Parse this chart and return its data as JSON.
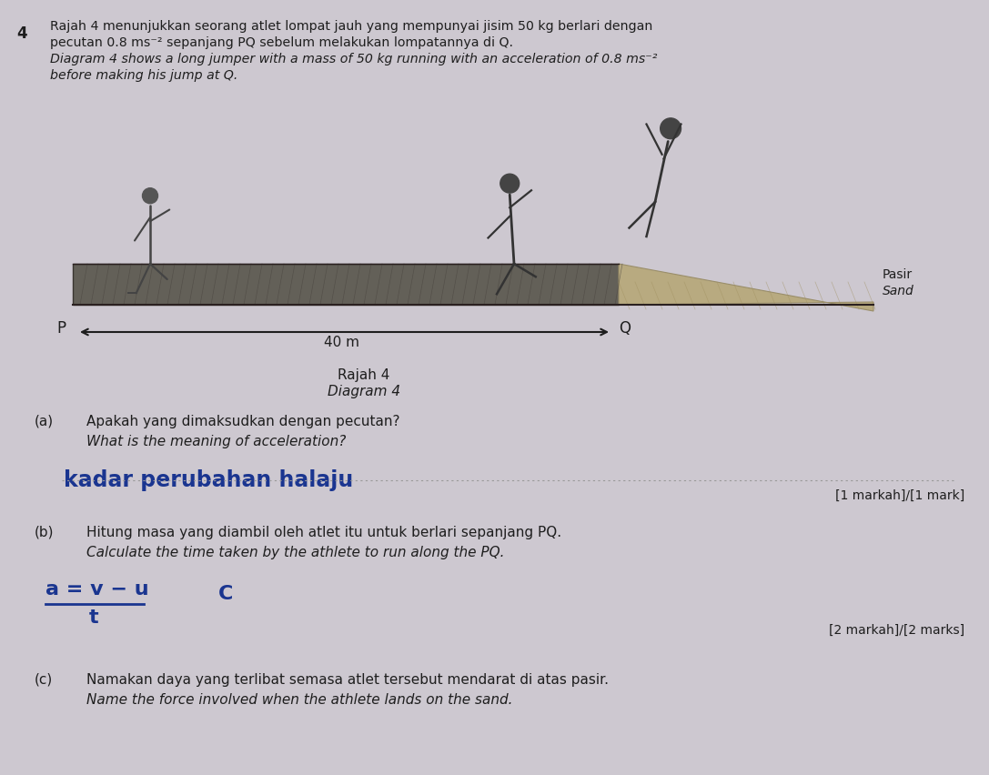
{
  "bg_color": "#cdc8d0",
  "fig_width": 10.87,
  "fig_height": 8.52,
  "question_number": "4",
  "header_text_line1": "Rajah 4 menunjukkan seorang atlet lompat jauh yang mempunyai jisim 50 kg berlari dengan",
  "header_text_line2": "pecutan 0.8 ms⁻² sepanjang PQ sebelum melakukan lompatannya di Q.",
  "header_text_line3": "Diagram 4 shows a long jumper with a mass of 50 kg running with an acceleration of 0.8 ms⁻²",
  "header_text_line4": "before making his jump at Q.",
  "diagram_label1": "Rajah 4",
  "diagram_label2": "Diagram 4",
  "arrow_label": "40 m",
  "label_P": "P",
  "label_Q": "Q",
  "sand_label1": "Pasir",
  "sand_label2": "Sand",
  "qa_label": "(a)",
  "qa_text_line1": "Apakah yang dimaksudkan dengan pecutan?",
  "qa_text_line2": "What is the meaning of acceleration?",
  "qa_answer": "kadar perubahan halaju",
  "qa_marks": "[1 markah]/[1 mark]",
  "qb_label": "(b)",
  "qb_text_line1": "Hitung masa yang diambil oleh atlet itu untuk berlari sepanjang PQ.",
  "qb_text_line2": "Calculate the time taken by the athlete to run along the PQ.",
  "qb_numerator": "a = v − u",
  "qb_denominator": "t",
  "qb_formula_extra": "C",
  "qb_marks": "[2 markah]/[2 marks]",
  "qc_label": "(c)",
  "qc_text_line1": "Namakan daya yang terlibat semasa atlet tersebut mendarat di atas pasir.",
  "qc_text_line2": "Name the force involved when the athlete lands on the sand.",
  "text_color": "#1e1e1e",
  "handwriting_color": "#1a3590",
  "track_fill": "#636058",
  "track_edge": "#3a3530",
  "sand_fill": "#b8aa80",
  "sand_edge": "#9a8e6a",
  "arrow_color": "#1e1e1e",
  "dotted_line_color": "#999999"
}
